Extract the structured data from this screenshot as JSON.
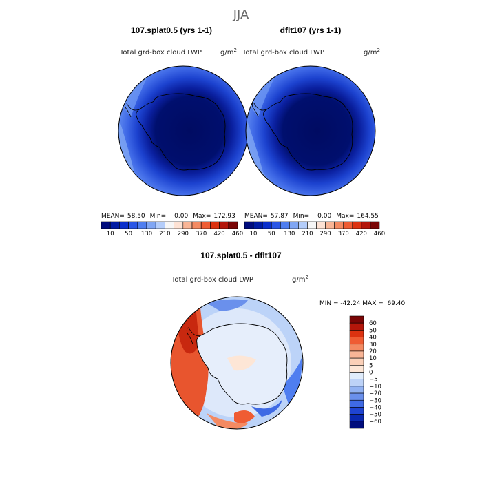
{
  "figure": {
    "season_title": "JJA"
  },
  "panels": [
    {
      "name": "panel-left",
      "title": "107.splat0.5 (yrs 1-1)",
      "variable": "Total grd-box cloud LWP",
      "units_base": "g/m",
      "units_sup": "2",
      "mean_label": "MEAN=",
      "mean_value": "58.50",
      "min_label": "Min=",
      "min_value": "0.00",
      "max_label": "Max=",
      "max_value": "172.93"
    },
    {
      "name": "panel-right",
      "title": "dflt107 (yrs 1-1)",
      "variable": "Total grd-box cloud LWP",
      "units_base": "g/m",
      "units_sup": "2",
      "mean_label": "MEAN=",
      "mean_value": "57.87",
      "min_label": "Min=",
      "min_value": "0.00",
      "max_label": "Max=",
      "max_value": "164.55"
    }
  ],
  "top_colorbar": {
    "colors": [
      "#000c7d",
      "#001ba3",
      "#0a2fcc",
      "#2a56e6",
      "#4f7ef0",
      "#80a6f4",
      "#b4cdfa",
      "#f6f6f6",
      "#fde2d4",
      "#f9b596",
      "#f48a62",
      "#ef5c33",
      "#dc3210",
      "#b4160a",
      "#7a0505"
    ],
    "tick_labels": [
      "10",
      "50",
      "130",
      "210",
      "290",
      "370",
      "420",
      "460"
    ]
  },
  "difference": {
    "title": "107.splat0.5 - dflt107",
    "variable": "Total grd-box cloud LWP",
    "units_base": "g/m",
    "units_sup": "2",
    "min_max_text": "MIN = -42.24 MAX =  69.40",
    "colorbar": {
      "colors": [
        "#7a0505",
        "#b4160a",
        "#dc3210",
        "#ef5c33",
        "#f48a62",
        "#f9b596",
        "#fbd0b8",
        "#fde6d6",
        "#e0ecfb",
        "#bdd2f7",
        "#92b2f2",
        "#6a90ec",
        "#3f6ae4",
        "#1f44d2",
        "#0a28b0",
        "#000c7d"
      ],
      "tick_labels": [
        "60",
        "50",
        "40",
        "30",
        "20",
        "10",
        "5",
        "0",
        "−5",
        "−10",
        "−20",
        "−30",
        "−40",
        "−50",
        "−60"
      ]
    }
  },
  "colors": {
    "field_dark": "#000f6e",
    "field_mid": "#1a3ccc",
    "field_light": "#4f7ef0",
    "field_pale": "#80a6f4",
    "diff_pale_blue": "#dce8fa",
    "diff_red": "#e8552e"
  }
}
